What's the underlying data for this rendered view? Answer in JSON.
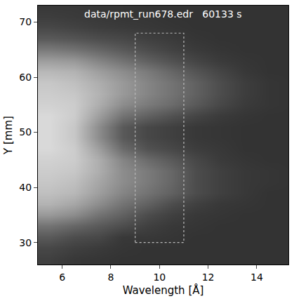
{
  "chart_data": {
    "type": "heatmap",
    "annotations": [
      "data/rpmt_run678.edr   60133 s"
    ],
    "x_label": "Wavelength [Å]",
    "y_label": "Y [mm]",
    "xlim": [
      5,
      15.3
    ],
    "ylim": [
      26,
      73
    ],
    "xticks": [
      6,
      8,
      10,
      12,
      14
    ],
    "yticks": [
      30,
      40,
      50,
      60,
      70
    ],
    "grid": false,
    "color": "gray",
    "zlim": [
      0,
      1
    ],
    "region": {
      "x": [
        9,
        11
      ],
      "y": [
        30,
        68
      ]
    },
    "x": [
      5.5,
      6.5,
      7.5,
      8.5,
      9.5,
      10.5,
      11.5,
      12.5,
      13.5,
      14.5,
      15.5
    ],
    "y": [
      27,
      29,
      31,
      33,
      35,
      37,
      39,
      41,
      43,
      45,
      47,
      49,
      51,
      53,
      55,
      57,
      59,
      61,
      63,
      65,
      67,
      69,
      71,
      73
    ],
    "z": [
      [
        0.25,
        0.22,
        0.21,
        0.2,
        0.2,
        0.2,
        0.2,
        0.2,
        0.2,
        0.2,
        0.2
      ],
      [
        0.28,
        0.25,
        0.23,
        0.21,
        0.2,
        0.2,
        0.2,
        0.2,
        0.2,
        0.2,
        0.2
      ],
      [
        0.35,
        0.3,
        0.28,
        0.22,
        0.22,
        0.21,
        0.2,
        0.2,
        0.2,
        0.2,
        0.2
      ],
      [
        0.45,
        0.4,
        0.35,
        0.3,
        0.25,
        0.22,
        0.21,
        0.2,
        0.2,
        0.2,
        0.2
      ],
      [
        0.6,
        0.55,
        0.45,
        0.38,
        0.3,
        0.25,
        0.22,
        0.21,
        0.2,
        0.2,
        0.2
      ],
      [
        0.7,
        0.65,
        0.55,
        0.45,
        0.38,
        0.3,
        0.25,
        0.22,
        0.21,
        0.2,
        0.2
      ],
      [
        0.75,
        0.72,
        0.62,
        0.52,
        0.45,
        0.38,
        0.3,
        0.25,
        0.22,
        0.2,
        0.2
      ],
      [
        0.78,
        0.75,
        0.65,
        0.55,
        0.48,
        0.4,
        0.3,
        0.25,
        0.22,
        0.21,
        0.2
      ],
      [
        0.8,
        0.78,
        0.68,
        0.55,
        0.48,
        0.4,
        0.3,
        0.25,
        0.22,
        0.21,
        0.2
      ],
      [
        0.82,
        0.8,
        0.68,
        0.52,
        0.42,
        0.35,
        0.28,
        0.23,
        0.21,
        0.2,
        0.2
      ],
      [
        0.85,
        0.8,
        0.62,
        0.42,
        0.32,
        0.28,
        0.24,
        0.22,
        0.2,
        0.2,
        0.2
      ],
      [
        0.85,
        0.78,
        0.55,
        0.35,
        0.28,
        0.25,
        0.22,
        0.21,
        0.2,
        0.2,
        0.2
      ],
      [
        0.85,
        0.78,
        0.55,
        0.35,
        0.28,
        0.25,
        0.22,
        0.21,
        0.2,
        0.2,
        0.2
      ],
      [
        0.85,
        0.8,
        0.62,
        0.45,
        0.38,
        0.32,
        0.27,
        0.23,
        0.21,
        0.2,
        0.2
      ],
      [
        0.82,
        0.8,
        0.68,
        0.55,
        0.48,
        0.42,
        0.35,
        0.28,
        0.23,
        0.21,
        0.2
      ],
      [
        0.8,
        0.78,
        0.7,
        0.6,
        0.52,
        0.45,
        0.38,
        0.3,
        0.24,
        0.21,
        0.2
      ],
      [
        0.78,
        0.75,
        0.68,
        0.6,
        0.52,
        0.45,
        0.38,
        0.3,
        0.24,
        0.21,
        0.2
      ],
      [
        0.72,
        0.7,
        0.62,
        0.55,
        0.48,
        0.4,
        0.33,
        0.27,
        0.22,
        0.2,
        0.2
      ],
      [
        0.62,
        0.6,
        0.52,
        0.45,
        0.38,
        0.32,
        0.27,
        0.23,
        0.21,
        0.2,
        0.2
      ],
      [
        0.48,
        0.45,
        0.4,
        0.35,
        0.3,
        0.26,
        0.23,
        0.21,
        0.2,
        0.2,
        0.2
      ],
      [
        0.35,
        0.33,
        0.3,
        0.28,
        0.25,
        0.23,
        0.21,
        0.2,
        0.2,
        0.2,
        0.2
      ],
      [
        0.28,
        0.26,
        0.24,
        0.23,
        0.22,
        0.21,
        0.2,
        0.2,
        0.2,
        0.2,
        0.2
      ],
      [
        0.24,
        0.23,
        0.22,
        0.21,
        0.21,
        0.2,
        0.2,
        0.2,
        0.2,
        0.2,
        0.2
      ],
      [
        0.22,
        0.22,
        0.21,
        0.21,
        0.2,
        0.2,
        0.2,
        0.2,
        0.2,
        0.2,
        0.2
      ]
    ]
  }
}
